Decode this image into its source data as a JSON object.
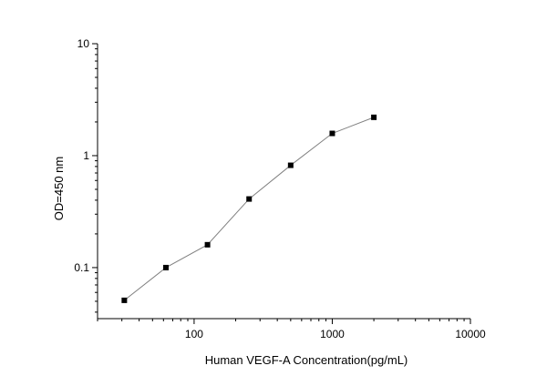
{
  "chart_data": {
    "type": "scatter",
    "title": "",
    "xlabel": "Human VEGF-A  Concentration(pg/mL)",
    "ylabel": "OD=450 nm",
    "xscale": "log",
    "yscale": "log",
    "xlim": [
      20,
      10000
    ],
    "ylim": [
      0.035,
      10
    ],
    "xticks": [
      100,
      1000,
      10000
    ],
    "xtick_labels": [
      "100",
      "1000",
      "10000"
    ],
    "yticks": [
      0.1,
      1,
      10
    ],
    "ytick_labels": [
      "0.1",
      "1",
      "10"
    ],
    "grid": false,
    "legend": "none",
    "line_color": "#808080",
    "marker_color": "#000000",
    "marker": "square",
    "connected": true,
    "series": [
      {
        "x": [
          31.25,
          62.5,
          125,
          250,
          500,
          1000,
          2000
        ],
        "y": [
          0.051,
          0.1,
          0.16,
          0.41,
          0.82,
          1.58,
          2.2
        ]
      }
    ]
  }
}
